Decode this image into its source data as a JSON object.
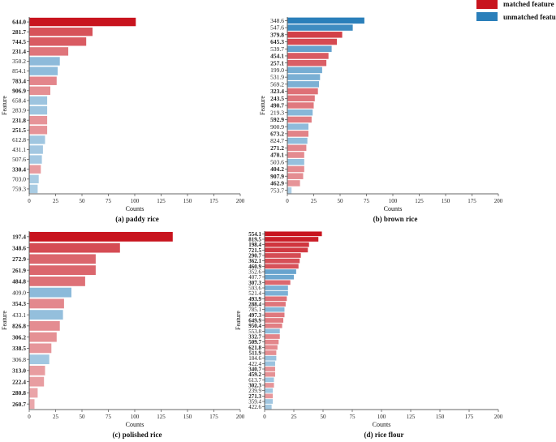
{
  "legend": {
    "items": [
      {
        "label": "matched feature",
        "color": "#c8141e"
      },
      {
        "label": "unmatched feature",
        "color": "#2a7fba"
      }
    ]
  },
  "chart_data": [
    {
      "type": "bar",
      "orientation": "horizontal",
      "caption": "(a) paddy rice",
      "xlabel": "Counts",
      "ylabel": "Feature",
      "xlim": [
        0,
        200
      ],
      "xticks": [
        0,
        25,
        50,
        75,
        100,
        125,
        150,
        175,
        200
      ],
      "bars": [
        {
          "label": "644.0",
          "value": 101,
          "matched": true
        },
        {
          "label": "281.7",
          "value": 60,
          "matched": true
        },
        {
          "label": "744.5",
          "value": 54,
          "matched": true
        },
        {
          "label": "231.4",
          "value": 37,
          "matched": true
        },
        {
          "label": "350.2",
          "value": 29,
          "matched": false
        },
        {
          "label": "854.1",
          "value": 27,
          "matched": false
        },
        {
          "label": "783.4",
          "value": 26,
          "matched": true
        },
        {
          "label": "906.9",
          "value": 20,
          "matched": true
        },
        {
          "label": "658.4",
          "value": 17,
          "matched": false
        },
        {
          "label": "283.9",
          "value": 17,
          "matched": false
        },
        {
          "label": "231.8",
          "value": 17,
          "matched": true
        },
        {
          "label": "251.5",
          "value": 17,
          "matched": true
        },
        {
          "label": "612.8",
          "value": 15,
          "matched": false
        },
        {
          "label": "431.1",
          "value": 13,
          "matched": false
        },
        {
          "label": "507.6",
          "value": 12,
          "matched": false
        },
        {
          "label": "330.4",
          "value": 11,
          "matched": true
        },
        {
          "label": "703.0",
          "value": 9,
          "matched": false
        },
        {
          "label": "759.3",
          "value": 8,
          "matched": false
        }
      ]
    },
    {
      "type": "bar",
      "orientation": "horizontal",
      "caption": "(b) brown rice",
      "xlabel": "Counts",
      "ylabel": "Feature",
      "xlim": [
        0,
        200
      ],
      "xticks": [
        0,
        25,
        50,
        75,
        100,
        125,
        150,
        175,
        200
      ],
      "bars": [
        {
          "label": "348.6",
          "value": 73,
          "matched": false
        },
        {
          "label": "547.6",
          "value": 62,
          "matched": false
        },
        {
          "label": "379.8",
          "value": 52,
          "matched": true
        },
        {
          "label": "645.3",
          "value": 47,
          "matched": true
        },
        {
          "label": "539.7",
          "value": 42,
          "matched": false
        },
        {
          "label": "454.1",
          "value": 39,
          "matched": true
        },
        {
          "label": "257.1",
          "value": 37,
          "matched": true
        },
        {
          "label": "199.0",
          "value": 33,
          "matched": false
        },
        {
          "label": "531.9",
          "value": 31,
          "matched": false
        },
        {
          "label": "569.2",
          "value": 30,
          "matched": false
        },
        {
          "label": "323.4",
          "value": 29,
          "matched": true
        },
        {
          "label": "243.5",
          "value": 26,
          "matched": true
        },
        {
          "label": "490.7",
          "value": 25,
          "matched": true
        },
        {
          "label": "219.3",
          "value": 24,
          "matched": false
        },
        {
          "label": "592.9",
          "value": 23,
          "matched": true
        },
        {
          "label": "900.9",
          "value": 20,
          "matched": false
        },
        {
          "label": "673.2",
          "value": 20,
          "matched": true
        },
        {
          "label": "824.7",
          "value": 19,
          "matched": false
        },
        {
          "label": "271.2",
          "value": 18,
          "matched": true
        },
        {
          "label": "470.1",
          "value": 16,
          "matched": true
        },
        {
          "label": "503.6",
          "value": 16,
          "matched": false
        },
        {
          "label": "404.2",
          "value": 16,
          "matched": true
        },
        {
          "label": "907.9",
          "value": 15,
          "matched": true
        },
        {
          "label": "462.9",
          "value": 12,
          "matched": true
        },
        {
          "label": "753.7",
          "value": 4,
          "matched": false
        }
      ]
    },
    {
      "type": "bar",
      "orientation": "horizontal",
      "caption": "(c) polished rice",
      "xlabel": "Counts",
      "ylabel": "Feature",
      "xlim": [
        0,
        200
      ],
      "xticks": [
        0,
        25,
        50,
        75,
        100,
        125,
        150,
        175,
        200
      ],
      "bars": [
        {
          "label": "197.4",
          "value": 136,
          "matched": true
        },
        {
          "label": "348.6",
          "value": 86,
          "matched": true
        },
        {
          "label": "272.9",
          "value": 63,
          "matched": true
        },
        {
          "label": "261.9",
          "value": 63,
          "matched": true
        },
        {
          "label": "484.8",
          "value": 53,
          "matched": true
        },
        {
          "label": "409.0",
          "value": 40,
          "matched": false
        },
        {
          "label": "354.3",
          "value": 33,
          "matched": true
        },
        {
          "label": "433.1",
          "value": 32,
          "matched": false
        },
        {
          "label": "826.8",
          "value": 29,
          "matched": true
        },
        {
          "label": "306.2",
          "value": 26,
          "matched": true
        },
        {
          "label": "338.5",
          "value": 21,
          "matched": true
        },
        {
          "label": "306.8",
          "value": 19,
          "matched": false
        },
        {
          "label": "313.0",
          "value": 15,
          "matched": true
        },
        {
          "label": "222.4",
          "value": 14,
          "matched": true
        },
        {
          "label": "280.8",
          "value": 8,
          "matched": true
        },
        {
          "label": "260.7",
          "value": 5,
          "matched": true
        }
      ]
    },
    {
      "type": "bar",
      "orientation": "horizontal",
      "caption": "(d) rice flour",
      "xlabel": "Counts",
      "ylabel": "Feature",
      "xlim": [
        0,
        200
      ],
      "xticks": [
        0,
        25,
        50,
        75,
        100,
        125,
        150,
        175,
        200
      ],
      "bars": [
        {
          "label": "554.1",
          "value": 49,
          "matched": true
        },
        {
          "label": "819.5",
          "value": 46,
          "matched": true
        },
        {
          "label": "198.4",
          "value": 38,
          "matched": true
        },
        {
          "label": "721.5",
          "value": 37,
          "matched": true
        },
        {
          "label": "290.7",
          "value": 31,
          "matched": true
        },
        {
          "label": "362.1",
          "value": 30,
          "matched": true
        },
        {
          "label": "460.9",
          "value": 29,
          "matched": true
        },
        {
          "label": "352.6",
          "value": 27,
          "matched": false
        },
        {
          "label": "407.7",
          "value": 25,
          "matched": false
        },
        {
          "label": "307.3",
          "value": 22,
          "matched": true
        },
        {
          "label": "593.6",
          "value": 20,
          "matched": false
        },
        {
          "label": "521.4",
          "value": 20,
          "matched": false
        },
        {
          "label": "493.9",
          "value": 19,
          "matched": true
        },
        {
          "label": "288.4",
          "value": 18,
          "matched": true
        },
        {
          "label": "785.1",
          "value": 17,
          "matched": false
        },
        {
          "label": "497.3",
          "value": 17,
          "matched": true
        },
        {
          "label": "649.9",
          "value": 16,
          "matched": true
        },
        {
          "label": "950.4",
          "value": 15,
          "matched": true
        },
        {
          "label": "553.8",
          "value": 13,
          "matched": false
        },
        {
          "label": "332.7",
          "value": 13,
          "matched": true
        },
        {
          "label": "509.7",
          "value": 12,
          "matched": true
        },
        {
          "label": "621.8",
          "value": 11,
          "matched": true
        },
        {
          "label": "511.9",
          "value": 10,
          "matched": true
        },
        {
          "label": "184.6",
          "value": 10,
          "matched": false
        },
        {
          "label": "422.4",
          "value": 9,
          "matched": false
        },
        {
          "label": "340.7",
          "value": 9,
          "matched": true
        },
        {
          "label": "459.2",
          "value": 9,
          "matched": true
        },
        {
          "label": "613.7",
          "value": 8,
          "matched": false
        },
        {
          "label": "302.3",
          "value": 8,
          "matched": true
        },
        {
          "label": "239.9",
          "value": 7,
          "matched": false
        },
        {
          "label": "271.3",
          "value": 7,
          "matched": true
        },
        {
          "label": "359.4",
          "value": 7,
          "matched": false
        },
        {
          "label": "422.6",
          "value": 6,
          "matched": false
        }
      ]
    }
  ]
}
